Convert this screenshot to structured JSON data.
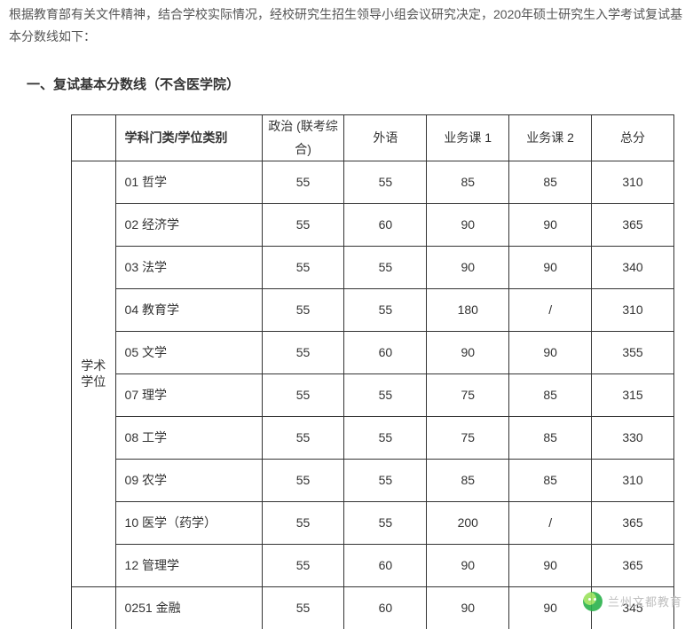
{
  "intro": "根据教育部有关文件精神，结合学校实际情况，经校研究生招生领导小组会议研究决定，2020年硕士研究生入学考试复试基本分数线如下：",
  "section_title": "一、复试基本分数线（不含医学院）",
  "table": {
    "headers": {
      "category_blank": "",
      "subject": "学科门类/学位类别",
      "politics": "政治 (联考综合)",
      "foreign": "外语",
      "course1": "业务课 1",
      "course2": "业务课 2",
      "total": "总分"
    },
    "category_label_line1": "学术",
    "category_label_line2": "学位",
    "rows": [
      {
        "subject": "01 哲学",
        "politics": "55",
        "foreign": "55",
        "c1": "85",
        "c2": "85",
        "total": "310"
      },
      {
        "subject": "02 经济学",
        "politics": "55",
        "foreign": "60",
        "c1": "90",
        "c2": "90",
        "total": "365"
      },
      {
        "subject": "03 法学",
        "politics": "55",
        "foreign": "55",
        "c1": "90",
        "c2": "90",
        "total": "340"
      },
      {
        "subject": "04 教育学",
        "politics": "55",
        "foreign": "55",
        "c1": "180",
        "c2": "/",
        "total": "310"
      },
      {
        "subject": "05 文学",
        "politics": "55",
        "foreign": "60",
        "c1": "90",
        "c2": "90",
        "total": "355"
      },
      {
        "subject": "07 理学",
        "politics": "55",
        "foreign": "55",
        "c1": "75",
        "c2": "85",
        "total": "315"
      },
      {
        "subject": "08 工学",
        "politics": "55",
        "foreign": "55",
        "c1": "75",
        "c2": "85",
        "total": "330"
      },
      {
        "subject": "09 农学",
        "politics": "55",
        "foreign": "55",
        "c1": "85",
        "c2": "85",
        "total": "310"
      },
      {
        "subject": "10 医学（药学）",
        "politics": "55",
        "foreign": "55",
        "c1": "200",
        "c2": "/",
        "total": "365"
      },
      {
        "subject": "12 管理学",
        "politics": "55",
        "foreign": "60",
        "c1": "90",
        "c2": "90",
        "total": "365"
      }
    ],
    "second_group_rows": [
      {
        "subject": "0251 金融",
        "politics": "55",
        "foreign": "60",
        "c1": "90",
        "c2": "90",
        "total": "345"
      }
    ]
  },
  "colors": {
    "text": "#333333",
    "border": "#333333",
    "bg": "#ffffff",
    "watermark_text": "#b9b9b9"
  },
  "watermark": {
    "text": "兰州文都教育"
  }
}
